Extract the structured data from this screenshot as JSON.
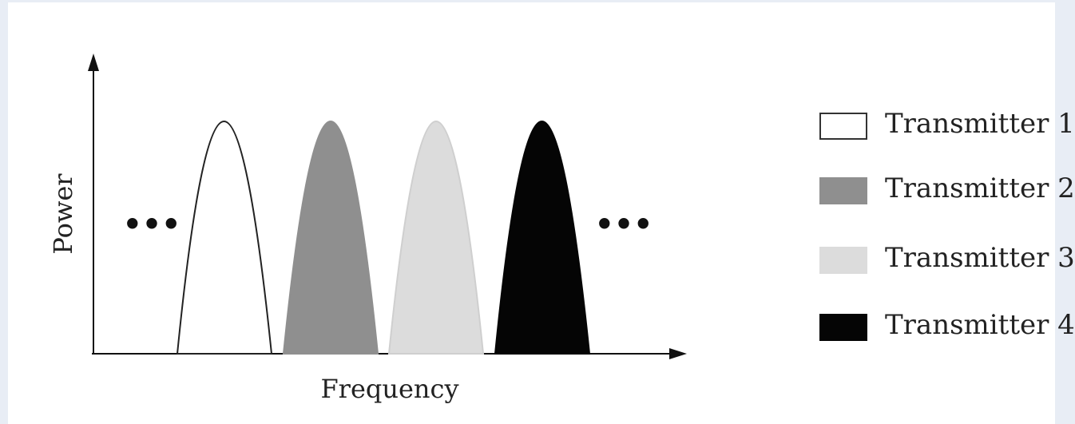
{
  "diagram": {
    "axes": {
      "y_label": "Power",
      "x_label": "Frequency"
    },
    "continuation": {
      "left": "•••",
      "right": "•••"
    },
    "transmitters": [
      {
        "name": "Transmitter 1",
        "fill": "#ffffff",
        "stroke": "#222222"
      },
      {
        "name": "Transmitter 2",
        "fill": "#8f8f8f",
        "stroke": "#8f8f8f"
      },
      {
        "name": "Transmitter 3",
        "fill": "#dcdcdc",
        "stroke": "#cfcfcf"
      },
      {
        "name": "Transmitter 4",
        "fill": "#050505",
        "stroke": "#050505"
      }
    ]
  }
}
